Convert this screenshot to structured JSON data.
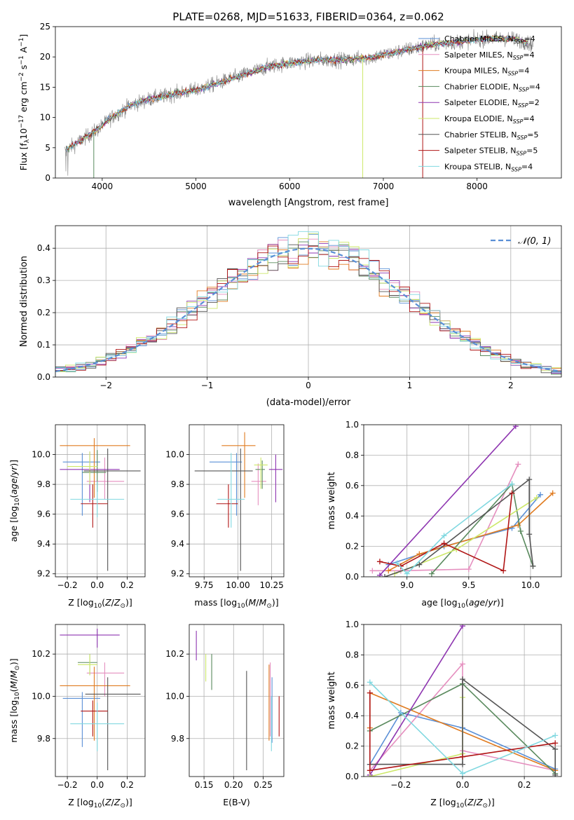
{
  "figure": {
    "title": "PLATE=0268, MJD=51633, FIBERID=0364, z=0.062"
  },
  "colors": {
    "chabrier_miles": "#5a8fd6",
    "salpeter_miles": "#e58fbf",
    "kroupa_miles": "#e07b20",
    "chabrier_elodie": "#5a8a5e",
    "salpeter_elodie": "#8e35b0",
    "kroupa_elodie": "#cde86a",
    "chabrier_stelib": "#555555",
    "salpeter_stelib": "#b01515",
    "kroupa_stelib": "#80d8e0",
    "data": "#808080",
    "normal": "#5a8fd6"
  },
  "chart_data": [
    {
      "id": "spectrum",
      "type": "line",
      "xlabel": "wavelength [Angstrom, rest frame]",
      "ylabel": "Flux [f_λ10^−17 erg cm^−2 s^−1 A^−1]",
      "xlim": [
        3500,
        8900
      ],
      "ylim": [
        0,
        25
      ],
      "xticks": [
        4000,
        5000,
        6000,
        7000,
        8000
      ],
      "yticks": [
        0,
        5,
        10,
        15,
        20,
        25
      ],
      "grid": false,
      "legend_position": "right",
      "legend": [
        {
          "model": "Chabrier MILES",
          "nssp": "4"
        },
        {
          "model": "Salpeter MILES",
          "nssp": "4"
        },
        {
          "model": "Kroupa MILES",
          "nssp": "4"
        },
        {
          "model": "Chabrier ELODIE",
          "nssp": "4"
        },
        {
          "model": "Salpeter ELODIE",
          "nssp": "2"
        },
        {
          "model": "Kroupa ELODIE",
          "nssp": "4"
        },
        {
          "model": "Chabrier STELIB",
          "nssp": "5"
        },
        {
          "model": "Salpeter STELIB",
          "nssp": "5"
        },
        {
          "model": "Kroupa STELIB",
          "nssp": "4"
        }
      ],
      "continuum": [
        [
          3600,
          4.5
        ],
        [
          3800,
          6.5
        ],
        [
          3950,
          8
        ],
        [
          4100,
          10
        ],
        [
          4300,
          12
        ],
        [
          4500,
          13
        ],
        [
          4800,
          14
        ],
        [
          5000,
          14.5
        ],
        [
          5200,
          15.5
        ],
        [
          5500,
          17
        ],
        [
          5800,
          18.5
        ],
        [
          6000,
          19
        ],
        [
          6300,
          19.5
        ],
        [
          6600,
          19.5
        ],
        [
          6900,
          20
        ],
        [
          7200,
          21
        ],
        [
          7500,
          22
        ],
        [
          7800,
          22.5
        ],
        [
          8100,
          23
        ],
        [
          8400,
          23
        ],
        [
          8600,
          22
        ]
      ]
    },
    {
      "id": "residuals",
      "type": "histogram",
      "xlabel": "(data-model)/error",
      "ylabel": "Normed distribution",
      "xlim": [
        -2.5,
        2.5
      ],
      "ylim": [
        0,
        0.47
      ],
      "xticks": [
        -2,
        -1,
        0,
        1,
        2
      ],
      "yticks": [
        0.0,
        0.1,
        0.2,
        0.3,
        0.4
      ],
      "grid": true,
      "legend_label": "𝒩(0, 1)",
      "legend_position": "top-right",
      "bin_width": 0.1
    },
    {
      "id": "age_vs_Z",
      "type": "errorbar",
      "xlabel": "Z [log10(Z/Z⊙)]",
      "ylabel": "age [log10(age/yr)]",
      "xlim": [
        -0.28,
        0.32
      ],
      "ylim": [
        9.18,
        10.2
      ],
      "xticks": [
        -0.2,
        0.0,
        0.2
      ],
      "yticks": [
        9.2,
        9.4,
        9.6,
        9.8,
        10.0
      ],
      "grid": true,
      "points": [
        {
          "series": "chabrier_miles",
          "x": -0.1,
          "xerr": [
            0.13,
            0.12
          ],
          "y": 9.95,
          "yerr": [
            0.36,
            0.06
          ]
        },
        {
          "series": "salpeter_miles",
          "x": 0.05,
          "xerr": [
            0.12,
            0.13
          ],
          "y": 9.82,
          "yerr": [
            0.12,
            0.16
          ]
        },
        {
          "series": "kroupa_miles",
          "x": -0.02,
          "xerr": [
            0.23,
            0.24
          ],
          "y": 10.06,
          "yerr": [
            0.35,
            0.05
          ]
        },
        {
          "series": "chabrier_elodie",
          "x": 0.0,
          "xerr": [
            0.1,
            0.06
          ],
          "y": 9.88,
          "yerr": [
            0.13,
            0.15
          ]
        },
        {
          "series": "salpeter_elodie",
          "x": -0.05,
          "xerr": [
            0.2,
            0.2
          ],
          "y": 9.9,
          "yerr": [
            0.22,
            0.12
          ]
        },
        {
          "series": "kroupa_elodie",
          "x": -0.05,
          "xerr": [
            0.15,
            0.05
          ],
          "y": 9.92,
          "yerr": [
            0.12,
            0.1
          ]
        },
        {
          "series": "chabrier_stelib",
          "x": 0.07,
          "xerr": [
            0.16,
            0.22
          ],
          "y": 9.89,
          "yerr": [
            0.67,
            0.15
          ]
        },
        {
          "series": "salpeter_stelib",
          "x": -0.03,
          "xerr": [
            0.08,
            0.1
          ],
          "y": 9.67,
          "yerr": [
            0.16,
            0.13
          ]
        },
        {
          "series": "kroupa_stelib",
          "x": 0.0,
          "xerr": [
            0.18,
            0.18
          ],
          "y": 9.7,
          "yerr": [
            0.12,
            0.12
          ]
        }
      ]
    },
    {
      "id": "age_vs_mass",
      "type": "errorbar",
      "xlabel": "mass [log10(M/M⊙)]",
      "ylabel": "",
      "xlim": [
        9.64,
        10.34
      ],
      "ylim": [
        9.18,
        10.2
      ],
      "xticks": [
        9.75,
        10.0,
        10.25
      ],
      "yticks": [
        9.2,
        9.4,
        9.6,
        9.8,
        10.0
      ],
      "grid": true,
      "points": [
        {
          "series": "chabrier_miles",
          "x": 9.99,
          "xerr": [
            0.2,
            0.04
          ],
          "y": 9.95,
          "yerr": [
            0.36,
            0.06
          ]
        },
        {
          "series": "salpeter_miles",
          "x": 10.15,
          "xerr": [
            0.05,
            0.06
          ],
          "y": 9.82,
          "yerr": [
            0.16,
            0.12
          ]
        },
        {
          "series": "kroupa_miles",
          "x": 10.05,
          "xerr": [
            0.17,
            0.08
          ],
          "y": 10.06,
          "yerr": [
            0.35,
            0.09
          ]
        },
        {
          "series": "chabrier_elodie",
          "x": 10.18,
          "xerr": [
            0.05,
            0.02
          ],
          "y": 9.9,
          "yerr": [
            0.13,
            0.06
          ]
        },
        {
          "series": "salpeter_elodie",
          "x": 10.28,
          "xerr": [
            0.05,
            0.05
          ],
          "y": 9.9,
          "yerr": [
            0.22,
            0.1
          ]
        },
        {
          "series": "kroupa_elodie",
          "x": 10.17,
          "xerr": [
            0.05,
            0.05
          ],
          "y": 9.93,
          "yerr": [
            0.16,
            0.05
          ]
        },
        {
          "series": "chabrier_stelib",
          "x": 10.02,
          "xerr": [
            0.34,
            0.09
          ],
          "y": 9.89,
          "yerr": [
            0.67,
            0.15
          ]
        },
        {
          "series": "salpeter_stelib",
          "x": 9.93,
          "xerr": [
            0.09,
            0.07
          ],
          "y": 9.67,
          "yerr": [
            0.16,
            0.13
          ]
        },
        {
          "series": "kroupa_stelib",
          "x": 9.95,
          "xerr": [
            0.1,
            0.1
          ],
          "y": 9.7,
          "yerr": [
            0.19,
            0.31
          ]
        }
      ]
    },
    {
      "id": "weight_vs_age",
      "type": "line",
      "xlabel": "age [log10(age/yr)]",
      "ylabel": "mass weight",
      "xlim": [
        8.65,
        10.25
      ],
      "ylim": [
        0,
        1
      ],
      "xticks": [
        9.0,
        9.5,
        10.0
      ],
      "yticks": [
        0.0,
        0.2,
        0.4,
        0.6,
        0.8,
        1.0
      ],
      "grid": true,
      "series": [
        {
          "series": "chabrier_miles",
          "x": [
            8.85,
            9.3,
            9.85,
            10.08
          ],
          "y": [
            0.08,
            0.2,
            0.32,
            0.54
          ]
        },
        {
          "series": "salpeter_miles",
          "x": [
            8.72,
            8.95,
            9.5,
            9.9
          ],
          "y": [
            0.04,
            0.04,
            0.05,
            0.74
          ]
        },
        {
          "series": "kroupa_miles",
          "x": [
            8.85,
            9.1,
            9.9,
            10.18
          ],
          "y": [
            0.04,
            0.15,
            0.34,
            0.55
          ]
        },
        {
          "series": "chabrier_elodie",
          "x": [
            9.2,
            9.85,
            9.92,
            10.02
          ],
          "y": [
            0.02,
            0.61,
            0.3,
            0.07
          ]
        },
        {
          "series": "salpeter_elodie",
          "x": [
            8.78,
            9.88
          ],
          "y": [
            0.01,
            0.99
          ]
        },
        {
          "series": "kroupa_elodie",
          "x": [
            8.9,
            9.4,
            10.05
          ],
          "y": [
            0.02,
            0.18,
            0.52
          ]
        },
        {
          "series": "chabrier_stelib",
          "x": [
            8.82,
            9.1,
            9.99,
            9.99,
            10.02
          ],
          "y": [
            0.0,
            0.08,
            0.64,
            0.28,
            0.07
          ]
        },
        {
          "series": "salpeter_stelib",
          "x": [
            8.78,
            8.95,
            9.3,
            9.78,
            9.85
          ],
          "y": [
            0.1,
            0.07,
            0.22,
            0.04,
            0.55
          ]
        },
        {
          "series": "kroupa_stelib",
          "x": [
            8.92,
            9.0,
            9.3,
            9.85
          ],
          "y": [
            0.09,
            0.02,
            0.27,
            0.61
          ]
        }
      ]
    },
    {
      "id": "mass_vs_Z",
      "type": "errorbar",
      "xlabel": "Z [log10(Z/Z⊙)]",
      "ylabel": "mass [log10(M/M⊙)]",
      "xlim": [
        -0.28,
        0.32
      ],
      "ylim": [
        9.62,
        10.34
      ],
      "xticks": [
        -0.2,
        0.0,
        0.2
      ],
      "yticks": [
        9.8,
        10.0,
        10.2
      ],
      "grid": true,
      "points": [
        {
          "series": "chabrier_miles",
          "x": -0.1,
          "xerr": [
            0.13,
            0.12
          ],
          "y": 9.99,
          "yerr": [
            0.23,
            0.03
          ]
        },
        {
          "series": "salpeter_miles",
          "x": 0.05,
          "xerr": [
            0.12,
            0.13
          ],
          "y": 10.11,
          "yerr": [
            0.11,
            0.05
          ]
        },
        {
          "series": "kroupa_miles",
          "x": -0.02,
          "xerr": [
            0.23,
            0.24
          ],
          "y": 10.05,
          "yerr": [
            0.26,
            0.09
          ]
        },
        {
          "series": "chabrier_elodie",
          "x": -0.05,
          "xerr": [
            0.08,
            0.05
          ],
          "y": 10.16,
          "yerr": [
            0.06,
            0.04
          ]
        },
        {
          "series": "salpeter_elodie",
          "x": 0.0,
          "xerr": [
            0.25,
            0.15
          ],
          "y": 10.29,
          "yerr": [
            0.06,
            0.03
          ]
        },
        {
          "series": "kroupa_elodie",
          "x": -0.05,
          "xerr": [
            0.08,
            0.05
          ],
          "y": 10.15,
          "yerr": [
            0.05,
            0.05
          ]
        },
        {
          "series": "chabrier_stelib",
          "x": 0.07,
          "xerr": [
            0.15,
            0.22
          ],
          "y": 10.01,
          "yerr": [
            0.36,
            0.08
          ]
        },
        {
          "series": "salpeter_stelib",
          "x": -0.03,
          "xerr": [
            0.08,
            0.1
          ],
          "y": 9.93,
          "yerr": [
            0.12,
            0.05
          ]
        },
        {
          "series": "kroupa_stelib",
          "x": 0.0,
          "xerr": [
            0.18,
            0.18
          ],
          "y": 9.87,
          "yerr": [
            0.13,
            0.1
          ]
        }
      ]
    },
    {
      "id": "mass_vs_ebv",
      "type": "errorbar",
      "xlabel": "E(B-V)",
      "ylabel": "",
      "xlim": [
        0.125,
        0.285
      ],
      "ylim": [
        9.62,
        10.34
      ],
      "xticks": [
        0.15,
        0.2,
        0.25
      ],
      "yticks": [
        9.8,
        10.0,
        10.2
      ],
      "grid": true,
      "points": [
        {
          "series": "chabrier_miles",
          "x": 0.265,
          "y": 9.99,
          "yerr": [
            0.21,
            0.1
          ]
        },
        {
          "series": "salpeter_miles",
          "x": 0.262,
          "y": 10.11,
          "yerr": [
            0.3,
            0.05
          ]
        },
        {
          "series": "kroupa_miles",
          "x": 0.26,
          "y": 10.05,
          "yerr": [
            0.26,
            0.1
          ]
        },
        {
          "series": "chabrier_elodie",
          "x": 0.163,
          "y": 10.16,
          "yerr": [
            0.13,
            0.04
          ]
        },
        {
          "series": "salpeter_elodie",
          "x": 0.137,
          "y": 10.28,
          "yerr": [
            0.11,
            0.03
          ]
        },
        {
          "series": "kroupa_elodie",
          "x": 0.153,
          "y": 10.15,
          "yerr": [
            0.08,
            0.05
          ]
        },
        {
          "series": "chabrier_stelib",
          "x": 0.222,
          "y": 10.0,
          "yerr": [
            0.35,
            0.12
          ]
        },
        {
          "series": "salpeter_stelib",
          "x": 0.277,
          "y": 9.92,
          "yerr": [
            0.11,
            0.08
          ]
        },
        {
          "series": "kroupa_stelib",
          "x": 0.264,
          "y": 9.87,
          "yerr": [
            0.13,
            0.13
          ]
        }
      ]
    },
    {
      "id": "weight_vs_Z",
      "type": "line",
      "xlabel": "Z [log10(Z/Z⊙)]",
      "ylabel": "mass weight",
      "xlim": [
        -0.32,
        0.32
      ],
      "ylim": [
        0,
        1
      ],
      "xticks": [
        -0.2,
        0.0,
        0.2
      ],
      "yticks": [
        0.0,
        0.2,
        0.4,
        0.6,
        0.8,
        1.0
      ],
      "grid": true,
      "series": [
        {
          "series": "chabrier_miles",
          "x": [
            -0.3,
            -0.2,
            0.0,
            0.3
          ],
          "y": [
            0.08,
            0.42,
            0.32,
            0.05
          ]
        },
        {
          "series": "salpeter_miles",
          "x": [
            -0.3,
            0.0,
            0.0,
            0.3
          ],
          "y": [
            0.04,
            0.74,
            0.17,
            0.04
          ]
        },
        {
          "series": "kroupa_miles",
          "x": [
            -0.3,
            -0.3,
            0.3
          ],
          "y": [
            0.32,
            0.55,
            0.04
          ]
        },
        {
          "series": "chabrier_elodie",
          "x": [
            -0.3,
            0.0,
            0.3
          ],
          "y": [
            0.3,
            0.61,
            0.02
          ]
        },
        {
          "series": "salpeter_elodie",
          "x": [
            -0.3,
            0.0
          ],
          "y": [
            0.01,
            0.99
          ]
        },
        {
          "series": "kroupa_elodie",
          "x": [
            -0.3,
            0.0,
            0.0
          ],
          "y": [
            0.0,
            0.15,
            0.52
          ]
        },
        {
          "series": "chabrier_stelib",
          "x": [
            -0.3,
            0.0,
            0.0,
            0.3,
            0.3
          ],
          "y": [
            0.08,
            0.08,
            0.64,
            0.18,
            0.01
          ]
        },
        {
          "series": "salpeter_stelib",
          "x": [
            -0.3,
            -0.3,
            0.0,
            0.3
          ],
          "y": [
            0.55,
            0.04,
            0.13,
            0.22
          ]
        },
        {
          "series": "kroupa_stelib",
          "x": [
            -0.3,
            0.0,
            0.0,
            0.3
          ],
          "y": [
            0.62,
            0.02,
            0.02,
            0.27
          ]
        }
      ]
    }
  ]
}
